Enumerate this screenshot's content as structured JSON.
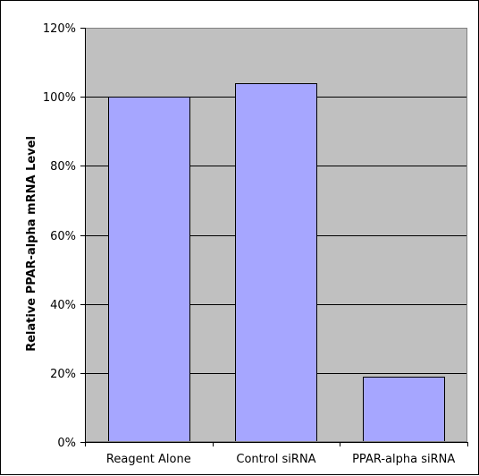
{
  "chart_data": {
    "type": "bar",
    "title": "",
    "xlabel": "",
    "ylabel": "Relative PPAR-alpha mRNA Level",
    "categories": [
      "Reagent Alone",
      "Control siRNA",
      "PPAR-alpha siRNA"
    ],
    "values": [
      100,
      104,
      19
    ],
    "ylim": [
      0,
      120
    ],
    "yticks": [
      0,
      20,
      40,
      60,
      80,
      100,
      120
    ],
    "ytick_suffix": "%",
    "grid": true,
    "legend": "none",
    "colors": {
      "plot_background": "#c0c0c0",
      "bar_fill": "#a6a6ff",
      "bar_stroke": "#000000",
      "gridline": "#000000"
    }
  }
}
